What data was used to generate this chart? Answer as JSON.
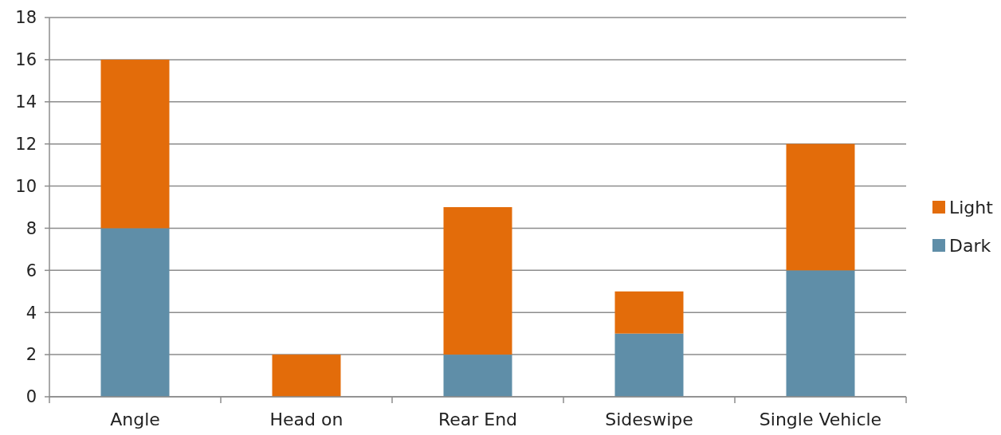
{
  "chart_data": {
    "type": "bar",
    "stacked": true,
    "categories": [
      "Angle",
      "Head on",
      "Rear End",
      "Sideswipe",
      "Single Vehicle"
    ],
    "series": [
      {
        "name": "Dark",
        "color": "#5f8ea8",
        "values": [
          8,
          0,
          2,
          3,
          6
        ]
      },
      {
        "name": "Light",
        "color": "#e36c0a",
        "values": [
          8,
          2,
          7,
          2,
          6
        ]
      }
    ],
    "ylim": [
      0,
      18
    ],
    "yticks": [
      0,
      2,
      4,
      6,
      8,
      10,
      12,
      14,
      16,
      18
    ],
    "grid": "y",
    "legend": "right"
  }
}
